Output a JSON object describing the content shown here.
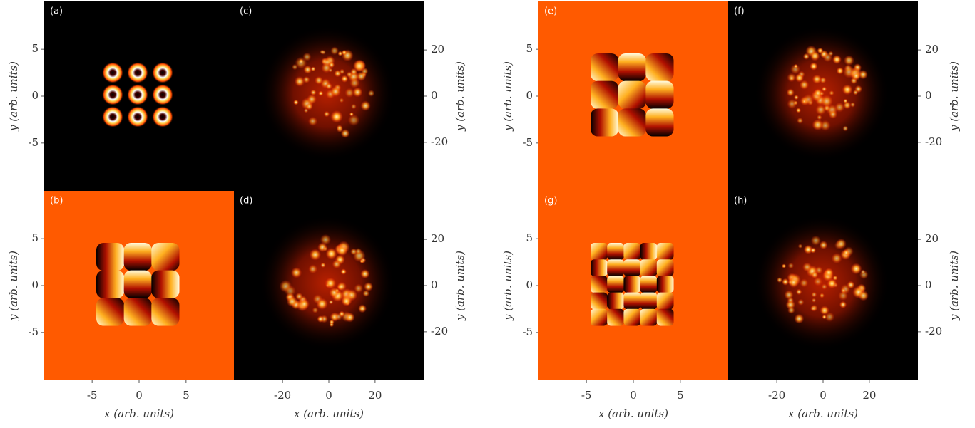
{
  "figures": [
    {
      "panels": [
        "(a)",
        "(c)",
        "(b)",
        "(d)"
      ],
      "y_left": {
        "label": "y (arb. units)",
        "lim": [
          -10.1,
          10.1
        ],
        "ticks": [
          5,
          0,
          -5
        ]
      },
      "y_right": {
        "label": "y (arb. units)",
        "lim": [
          -41,
          41
        ],
        "ticks": [
          20,
          0,
          -20
        ]
      },
      "x_left": {
        "label": "x (arb. units)",
        "lim": [
          -10.1,
          10.1
        ],
        "ticks": [
          -5,
          0,
          5
        ]
      },
      "x_right": {
        "label": "x (arb. units)",
        "lim": [
          -41,
          41
        ],
        "ticks": [
          -20,
          0,
          20
        ]
      }
    },
    {
      "panels": [
        "(e)",
        "(f)",
        "(g)",
        "(h)"
      ],
      "y_left": {
        "label": "y (arb. units)",
        "lim": [
          -10.1,
          10.1
        ],
        "ticks": [
          5,
          0,
          -5
        ]
      },
      "y_right": {
        "label": "y (arb. units)",
        "lim": [
          -41,
          41
        ],
        "ticks": [
          20,
          0,
          -20
        ]
      },
      "x_left": {
        "label": "x (arb. units)",
        "lim": [
          -10.1,
          10.1
        ],
        "ticks": [
          -5,
          0,
          5
        ]
      },
      "x_right": {
        "label": "x (arb. units)",
        "lim": [
          -41,
          41
        ],
        "ticks": [
          -20,
          0,
          20
        ]
      }
    }
  ]
}
